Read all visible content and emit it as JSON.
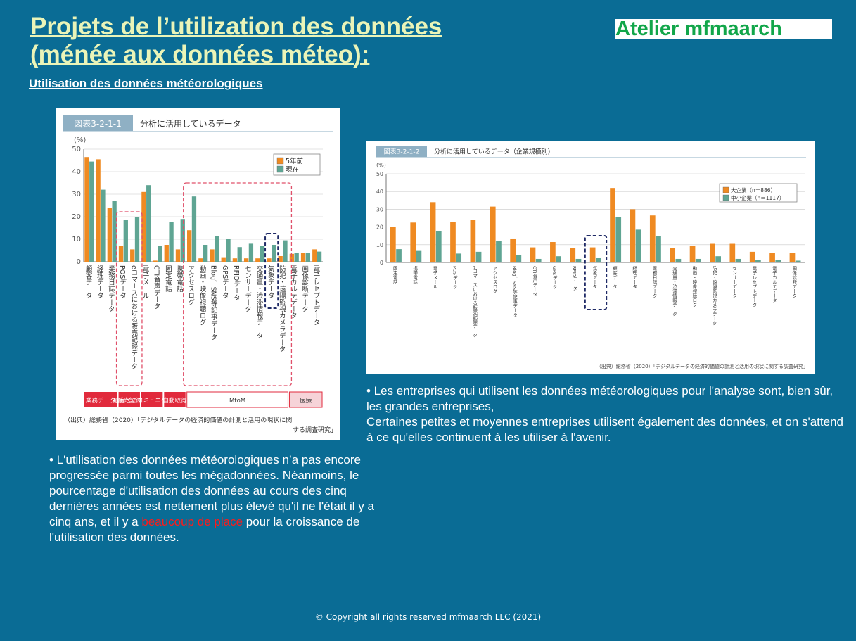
{
  "slide": {
    "title_line1": "Projets de l’utilization des données",
    "title_line2": "(ménée aux données méteo):",
    "logo": "Atelier mfmaarch",
    "subtitle": "Utilisation des données météorologiques",
    "copyright": "© Copyright all rights reserved mfmaarch LLC (2021)",
    "colors": {
      "background": "#0a6c95",
      "title": "#eaf4b8",
      "logo": "#12a64a",
      "highlight": "#ff1a1a"
    }
  },
  "left_text": {
    "p1": "• L'utilisation des données météorologiques n’a pas encore progressée parmi toutes les mégadonnées. Néanmoins, le pourcentage d'utilisation des données au cours des cinq dernières années est nettement plus élevé qu'il ne l'était il y a cinq ans, et il y a ",
    "highlight": "beaucoup de place",
    "p1_end": " pour la croissance de l'utilisation des données."
  },
  "right_text": {
    "line1": "• Les entreprises qui utilisent les données météorologiques pour l'analyse sont, bien sûr, les grandes entreprises,",
    "line2": "Certaines petites et moyennes entreprises utilisent également des données, et on s'attend à ce qu'elles continuent à les utiliser à l'avenir."
  },
  "chart_data": [
    {
      "type": "bar",
      "figure_label": "図表3-2-1-1",
      "title": "分析に活用しているデータ",
      "unit": "(%)",
      "ylim": [
        0,
        50
      ],
      "yticks": [
        0,
        10,
        20,
        30,
        40,
        50
      ],
      "legend_placement": "top-right",
      "categories": [
        "顧客データ",
        "経理データ",
        "業務日誌データ",
        "POSデータ",
        "eコマースにおける販売記録データ",
        "電子メール",
        "CTI音声データ",
        "固定電話",
        "携帯電話",
        "アクセスログ",
        "動画・映像視聴ログ",
        "Blog、SNS等記事データ",
        "GPSデータ",
        "RFIDデータ",
        "センサーデータ",
        "交通量・渋滞情報データ",
        "気象データ",
        "防犯・遠隔監視カメラデータ",
        "電子カルテデータ",
        "画像診断データ",
        "電子レセプトデータ"
      ],
      "series": [
        {
          "name": "5年前",
          "color": "#ef8a22",
          "values": [
            46.5,
            45.5,
            24,
            7,
            5.5,
            31,
            0.5,
            7.5,
            5.5,
            14,
            1.5,
            5.5,
            2,
            1.5,
            1.5,
            1.5,
            1.5,
            2.5,
            3.5,
            4,
            5.5
          ]
        },
        {
          "name": "現在",
          "color": "#5fa593",
          "values": [
            44.5,
            32,
            27,
            18.5,
            20,
            34,
            7,
            17.5,
            19,
            29,
            7.5,
            11.5,
            10,
            6.5,
            8,
            7,
            7.5,
            9.5,
            4,
            4,
            4.5
          ]
        }
      ],
      "groups": [
        "業務データ",
        "販売記録",
        "顧客とのコミュニケーション",
        "自動取得",
        "MtoM",
        "医療"
      ],
      "source": "（出典）総務省（2020）「デジタルデータの経済的価値の計測と活用の現状に関する調査研究」"
    },
    {
      "type": "bar",
      "figure_label": "図表3-2-1-2",
      "title": "分析に活用しているデータ（企業規模別）",
      "unit": "(%)",
      "ylim": [
        0,
        50
      ],
      "yticks": [
        0,
        10,
        20,
        30,
        40,
        50
      ],
      "legend_placement": "top-right",
      "categories": [
        "固定電話",
        "携帯電話",
        "電子メール",
        "POSデータ",
        "eコマースにおける販売記録データ",
        "アクセスログ",
        "Blog、SNS等記事データ",
        "CTI音声データ",
        "GPSデータ",
        "RFIDデータ",
        "気象データ",
        "顧客データ",
        "経理データ",
        "業務日誌データ",
        "交通量・渋滞情報データ",
        "動画・映像視聴ログ",
        "防犯・遠隔監視カメラデータ",
        "センサーデータ",
        "電子レセプトデータ",
        "電子カルテデータ",
        "画像診断データ"
      ],
      "series": [
        {
          "name": "大企業（n＝886）",
          "color": "#ef8a22",
          "values": [
            20,
            22.5,
            34,
            23,
            24,
            31.5,
            13.5,
            8.5,
            11.5,
            8,
            8.5,
            42,
            30,
            26.5,
            8,
            9.5,
            10.5,
            10.5,
            6,
            5.5,
            5.5
          ]
        },
        {
          "name": "中小企業（n＝1117）",
          "color": "#5fa593",
          "values": [
            7.5,
            6.5,
            17.5,
            5,
            6,
            12,
            4,
            2,
            3.5,
            2,
            2.5,
            25.5,
            18.5,
            15,
            2,
            2,
            3.5,
            2,
            1.5,
            1.5,
            1
          ]
        }
      ],
      "source": "（出典）総務省（2020）「デジタルデータの経済的価値の計測と活用の現状に関する調査研究」"
    }
  ]
}
